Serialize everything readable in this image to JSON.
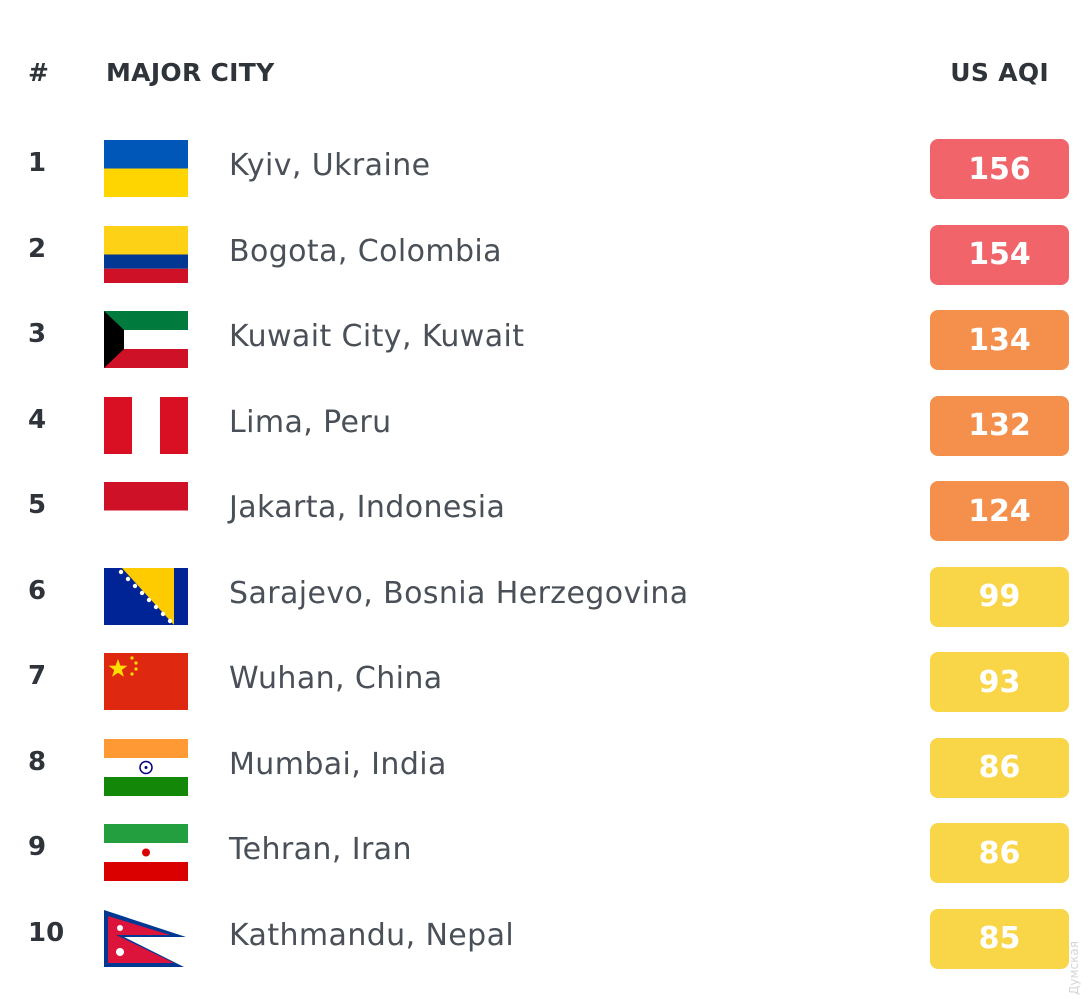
{
  "table": {
    "headers": {
      "rank": "#",
      "city": "MAJOR CITY",
      "aqi": "US AQI"
    },
    "rows": [
      {
        "rank": "1",
        "city": "Kyiv, Ukraine",
        "aqi": "156",
        "level": "unhealthy",
        "flag": "ukraine-flag-icon"
      },
      {
        "rank": "2",
        "city": "Bogota, Colombia",
        "aqi": "154",
        "level": "unhealthy",
        "flag": "colombia-flag-icon"
      },
      {
        "rank": "3",
        "city": "Kuwait City, Kuwait",
        "aqi": "134",
        "level": "sensitive",
        "flag": "kuwait-flag-icon"
      },
      {
        "rank": "4",
        "city": "Lima, Peru",
        "aqi": "132",
        "level": "sensitive",
        "flag": "peru-flag-icon"
      },
      {
        "rank": "5",
        "city": "Jakarta, Indonesia",
        "aqi": "124",
        "level": "sensitive",
        "flag": "indonesia-flag-icon"
      },
      {
        "rank": "6",
        "city": "Sarajevo, Bosnia Herzegovina",
        "aqi": "99",
        "level": "moderate",
        "flag": "bosnia-flag-icon"
      },
      {
        "rank": "7",
        "city": "Wuhan, China",
        "aqi": "93",
        "level": "moderate",
        "flag": "china-flag-icon"
      },
      {
        "rank": "8",
        "city": "Mumbai, India",
        "aqi": "86",
        "level": "moderate",
        "flag": "india-flag-icon"
      },
      {
        "rank": "9",
        "city": "Tehran, Iran",
        "aqi": "86",
        "level": "moderate",
        "flag": "iran-flag-icon"
      },
      {
        "rank": "10",
        "city": "Kathmandu, Nepal",
        "aqi": "85",
        "level": "moderate",
        "flag": "nepal-flag-icon"
      }
    ]
  },
  "colors": {
    "unhealthy": "#f0646a",
    "sensitive": "#f4904c",
    "moderate": "#f9d548"
  },
  "watermark": "Думская"
}
